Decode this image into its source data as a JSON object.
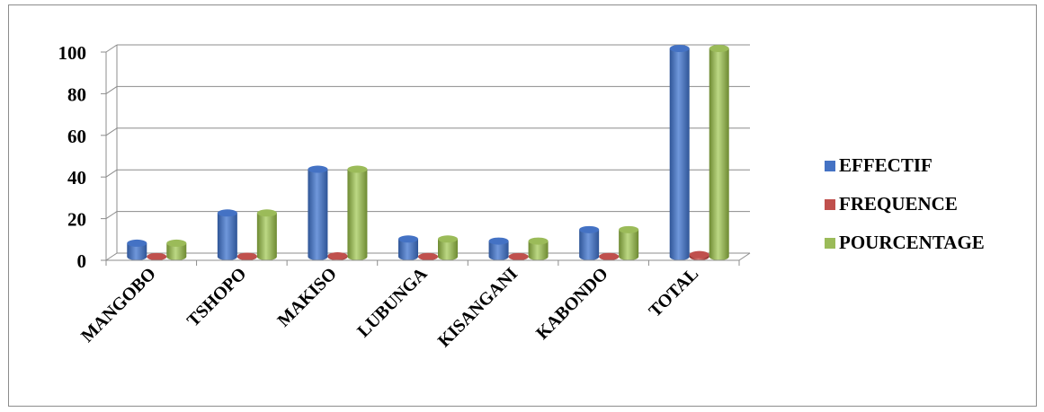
{
  "chart_data": {
    "type": "bar",
    "categories": [
      "MANGOBO",
      "TSHOPO",
      "MAKISO",
      "LUBUNGA",
      "KISANGANI",
      "KABONDO",
      "TOTAL"
    ],
    "series": [
      {
        "name": "EFFECTIF",
        "values": [
          6.5,
          21,
          42,
          8.5,
          7.5,
          13,
          100
        ],
        "color": "#4472c4"
      },
      {
        "name": "FREQUENCE",
        "values": [
          0.065,
          0.21,
          0.42,
          0.085,
          0.075,
          0.13,
          1
        ],
        "color": "#c0504d"
      },
      {
        "name": "POURCENTAGE",
        "values": [
          6.5,
          21,
          42,
          8.5,
          7.5,
          13,
          100
        ],
        "color": "#9bbb59"
      }
    ],
    "yticks": [
      0,
      20,
      40,
      60,
      80,
      100
    ],
    "ylim": [
      0,
      100
    ],
    "grid": true,
    "legend": "right",
    "title": "",
    "xlabel": "",
    "ylabel": ""
  }
}
